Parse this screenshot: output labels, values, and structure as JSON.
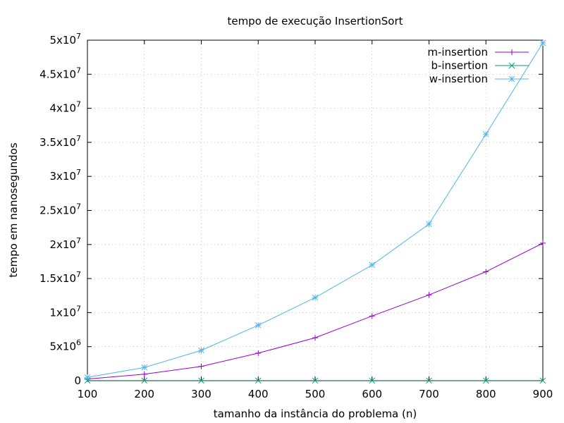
{
  "chart_data": {
    "type": "line",
    "title": "tempo de execução InsertionSort",
    "xlabel": "tamanho da instância do problema (n)",
    "ylabel": "tempo em nanosegundos",
    "x": [
      100,
      200,
      300,
      400,
      500,
      600,
      700,
      800,
      900
    ],
    "xlim": [
      100,
      900
    ],
    "ylim": [
      0,
      50000000
    ],
    "xticks": [
      100,
      200,
      300,
      400,
      500,
      600,
      700,
      800,
      900
    ],
    "yticks": [
      {
        "value": 0,
        "base": "0",
        "exp": ""
      },
      {
        "value": 5000000,
        "base": "5x10",
        "exp": "6"
      },
      {
        "value": 10000000,
        "base": "1x10",
        "exp": "7"
      },
      {
        "value": 15000000,
        "base": "1.5x10",
        "exp": "7"
      },
      {
        "value": 20000000,
        "base": "2x10",
        "exp": "7"
      },
      {
        "value": 25000000,
        "base": "2.5x10",
        "exp": "7"
      },
      {
        "value": 30000000,
        "base": "3x10",
        "exp": "7"
      },
      {
        "value": 35000000,
        "base": "3.5x10",
        "exp": "7"
      },
      {
        "value": 40000000,
        "base": "4x10",
        "exp": "7"
      },
      {
        "value": 45000000,
        "base": "4.5x10",
        "exp": "7"
      },
      {
        "value": 50000000,
        "base": "5x10",
        "exp": "7"
      }
    ],
    "grid": true,
    "legend_position": "top-right",
    "series": [
      {
        "name": "m-insertion",
        "color": "#9400d3",
        "marker": "plus",
        "values": [
          250000,
          950000,
          2100000,
          4050000,
          6300000,
          9500000,
          12600000,
          16000000,
          20200000
        ]
      },
      {
        "name": "b-insertion",
        "color": "#009e73",
        "marker": "cross",
        "values": [
          20000,
          20000,
          20000,
          20000,
          20000,
          20000,
          20000,
          20000,
          20000
        ]
      },
      {
        "name": "w-insertion",
        "color": "#56b4e9",
        "marker": "star",
        "values": [
          500000,
          1950000,
          4450000,
          8150000,
          12200000,
          17000000,
          23000000,
          36200000,
          49600000
        ]
      }
    ]
  }
}
